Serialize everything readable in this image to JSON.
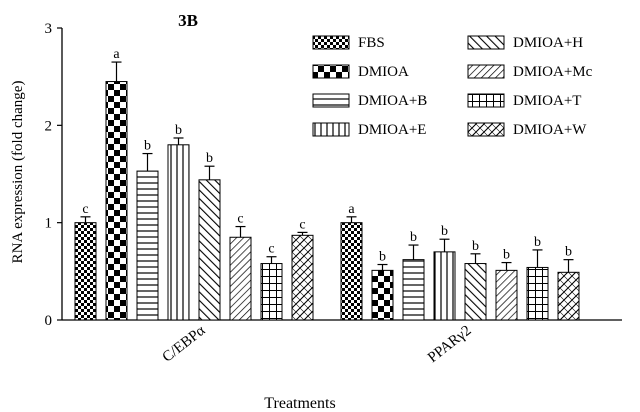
{
  "chart_data": {
    "type": "bar",
    "title": "3B",
    "xlabel": "Treatments",
    "ylabel": "RNA expression (fold change)",
    "ylim": [
      0,
      3
    ],
    "yticks": [
      0,
      1,
      2,
      3
    ],
    "grid": false,
    "legend_position": "top-right",
    "categories": [
      "C/EBPα",
      "PPARγ2"
    ],
    "series": [
      {
        "name": "FBS",
        "pattern": "small-check",
        "values": [
          1.0,
          1.0
        ],
        "errors": [
          0.06,
          0.06
        ],
        "letters": [
          "c",
          "a"
        ]
      },
      {
        "name": "DMIOA",
        "pattern": "large-check",
        "values": [
          2.45,
          0.51
        ],
        "errors": [
          0.2,
          0.06
        ],
        "letters": [
          "a",
          "b"
        ]
      },
      {
        "name": "DMIOA+B",
        "pattern": "horizontal",
        "values": [
          1.53,
          0.62
        ],
        "errors": [
          0.18,
          0.15
        ],
        "letters": [
          "b",
          "b"
        ]
      },
      {
        "name": "DMIOA+E",
        "pattern": "vertical",
        "values": [
          1.8,
          0.7
        ],
        "errors": [
          0.07,
          0.13
        ],
        "letters": [
          "b",
          "b"
        ]
      },
      {
        "name": "DMIOA+H",
        "pattern": "diag-up",
        "values": [
          1.44,
          0.58
        ],
        "errors": [
          0.14,
          0.1
        ],
        "letters": [
          "b",
          "b"
        ]
      },
      {
        "name": "DMIOA+Mc",
        "pattern": "diag-down",
        "values": [
          0.85,
          0.51
        ],
        "errors": [
          0.11,
          0.08
        ],
        "letters": [
          "c",
          "b"
        ]
      },
      {
        "name": "DMIOA+T",
        "pattern": "grid",
        "values": [
          0.58,
          0.54
        ],
        "errors": [
          0.07,
          0.18
        ],
        "letters": [
          "c",
          "b"
        ]
      },
      {
        "name": "DMIOA+W",
        "pattern": "diag-cross",
        "values": [
          0.87,
          0.49
        ],
        "errors": [
          0.03,
          0.13
        ],
        "letters": [
          "c",
          "b"
        ]
      }
    ]
  }
}
